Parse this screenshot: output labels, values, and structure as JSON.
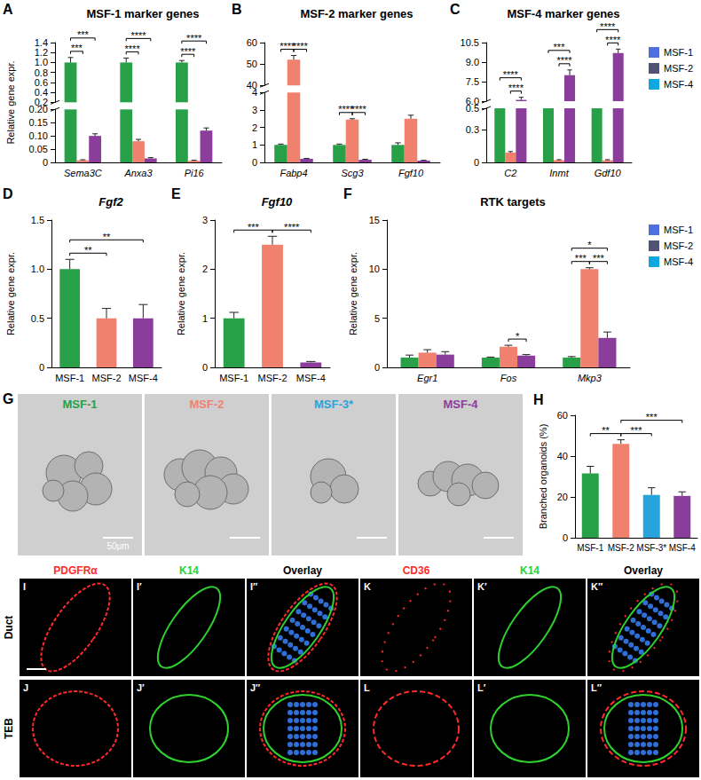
{
  "chart_data": [
    {
      "panel": "A",
      "type": "bar",
      "title": "MSF-1 marker genes",
      "ylabel": "Relative gene expr.",
      "categories": [
        "Sema3C",
        "Anxa3",
        "Pi16"
      ],
      "series": [
        {
          "name": "MSF-1",
          "color": "#27a048",
          "values": [
            1.0,
            1.0,
            1.0
          ],
          "errors": [
            0.1,
            0.09,
            0.04
          ]
        },
        {
          "name": "MSF-2",
          "color": "#f0816f",
          "values": [
            0.008,
            0.08,
            0.006
          ],
          "errors": [
            0.002,
            0.007,
            0.002
          ]
        },
        {
          "name": "MSF-4",
          "color": "#8a3d9b",
          "values": [
            0.1,
            0.015,
            0.12
          ],
          "errors": [
            0.008,
            0.003,
            0.01
          ]
        }
      ],
      "y_segments": [
        {
          "ylim": [
            0,
            0.2
          ],
          "yticks": [
            0,
            0.05,
            {
              "value": 0.1,
              "label": "0.10"
            },
            0.15,
            {
              "value": 0.2,
              "label": "0.20"
            }
          ]
        },
        {
          "ylim": [
            0.2,
            1.4
          ],
          "yticks": [
            0.2,
            0.4,
            0.6,
            0.8,
            {
              "value": 1,
              "label": "1.0"
            },
            1.2,
            1.4
          ]
        }
      ],
      "significance": [
        {
          "category": "Sema3C",
          "between": [
            "MSF-1",
            "MSF-2"
          ],
          "label": "***"
        },
        {
          "category": "Sema3C",
          "between": [
            "MSF-1",
            "MSF-4"
          ],
          "label": "***"
        },
        {
          "category": "Anxa3",
          "between": [
            "MSF-1",
            "MSF-2"
          ],
          "label": "****"
        },
        {
          "category": "Anxa3",
          "between": [
            "MSF-1",
            "MSF-4"
          ],
          "label": "****"
        },
        {
          "category": "Pi16",
          "between": [
            "MSF-1",
            "MSF-2"
          ],
          "label": "****"
        },
        {
          "category": "Pi16",
          "between": [
            "MSF-1",
            "MSF-4"
          ],
          "label": "****"
        }
      ],
      "grid": false
    },
    {
      "panel": "B",
      "type": "bar",
      "title": "MSF-2 marker genes",
      "categories": [
        "Fabp4",
        "Scg3",
        "Fgf10"
      ],
      "series": [
        {
          "name": "MSF-1",
          "color": "#27a048",
          "values": [
            1,
            1,
            1
          ],
          "errors": [
            0.05,
            0.05,
            0.12
          ]
        },
        {
          "name": "MSF-2",
          "color": "#f0816f",
          "values": [
            52,
            2.45,
            2.5
          ],
          "errors": [
            2,
            0.05,
            0.2
          ]
        },
        {
          "name": "MSF-4",
          "color": "#8a3d9b",
          "values": [
            0.2,
            0.15,
            0.1
          ],
          "errors": [
            0.03,
            0.03,
            0.02
          ]
        }
      ],
      "y_segments": [
        {
          "ylim": [
            0,
            4
          ],
          "yticks": [
            0,
            1,
            2,
            3,
            4
          ]
        },
        {
          "ylim": [
            40,
            60
          ],
          "yticks": [
            40,
            50,
            60
          ]
        }
      ],
      "significance": [
        {
          "category": "Fabp4",
          "between": [
            "MSF-1",
            "MSF-2"
          ],
          "label": "****"
        },
        {
          "category": "Fabp4",
          "between": [
            "MSF-2",
            "MSF-4"
          ],
          "label": "****"
        },
        {
          "category": "Scg3",
          "between": [
            "MSF-1",
            "MSF-2"
          ],
          "label": "****"
        },
        {
          "category": "Scg3",
          "between": [
            "MSF-2",
            "MSF-4"
          ],
          "label": "****"
        }
      ],
      "grid": false
    },
    {
      "panel": "C",
      "type": "bar",
      "title": "MSF-4 marker genes",
      "categories": [
        "C2",
        "Inmt",
        "Gdf10"
      ],
      "legend": "right",
      "series": [
        {
          "name": "MSF-1",
          "color": "#27a048",
          "values": [
            0.5,
            0.5,
            0.5
          ],
          "errors": [
            0.01,
            0.01,
            0.01
          ]
        },
        {
          "name": "MSF-2",
          "color": "#f0816f",
          "values": [
            0.09,
            0.02,
            0.02
          ],
          "errors": [
            0.01,
            0.005,
            0.005
          ]
        },
        {
          "name": "MSF-4",
          "color": "#8a3d9b",
          "values": [
            6.1,
            8.0,
            9.7
          ],
          "errors": [
            0.2,
            0.4,
            0.3
          ]
        }
      ],
      "y_segments": [
        {
          "ylim": [
            0,
            0.5
          ],
          "yticks": [
            0,
            0.3,
            0.5
          ]
        },
        {
          "ylim": [
            6,
            10.5
          ],
          "yticks": [
            {
              "value": 6,
              "label": "6.0"
            },
            7.5,
            {
              "value": 9,
              "label": "9.0"
            },
            10.5
          ]
        }
      ],
      "significance": [
        {
          "category": "C2",
          "between": [
            "MSF-1",
            "MSF-4"
          ],
          "label": "****"
        },
        {
          "category": "C2",
          "between": [
            "MSF-2",
            "MSF-4"
          ],
          "label": "****"
        },
        {
          "category": "Inmt",
          "between": [
            "MSF-1",
            "MSF-4"
          ],
          "label": "***"
        },
        {
          "category": "Inmt",
          "between": [
            "MSF-2",
            "MSF-4"
          ],
          "label": "****"
        },
        {
          "category": "Gdf10",
          "between": [
            "MSF-1",
            "MSF-4"
          ],
          "label": "****"
        },
        {
          "category": "Gdf10",
          "between": [
            "MSF-2",
            "MSF-4"
          ],
          "label": "****"
        }
      ],
      "grid": false
    },
    {
      "panel": "D",
      "type": "bar",
      "title": "Fgf2",
      "ylabel": "Relative gene expr.",
      "categories": [
        "MSF-1",
        "MSF-2",
        "MSF-4"
      ],
      "colors": [
        "#27a048",
        "#f0816f",
        "#8a3d9b"
      ],
      "values": [
        1.0,
        0.5,
        0.5
      ],
      "errors": [
        0.1,
        0.1,
        0.14
      ],
      "ylim": [
        0,
        1.5
      ],
      "yticks": [
        0,
        0.5,
        {
          "value": 1,
          "label": "1.0"
        },
        1.5
      ],
      "significance": [
        {
          "between": [
            "MSF-1",
            "MSF-2"
          ],
          "label": "**"
        },
        {
          "between": [
            "MSF-1",
            "MSF-4"
          ],
          "label": "**"
        }
      ],
      "grid": false
    },
    {
      "panel": "E",
      "type": "bar",
      "title": "Fgf10",
      "ylabel": "Relative gene expr.",
      "categories": [
        "MSF-1",
        "MSF-2",
        "MSF-4"
      ],
      "colors": [
        "#27a048",
        "#f0816f",
        "#8a3d9b"
      ],
      "values": [
        1.0,
        2.5,
        0.1
      ],
      "errors": [
        0.12,
        0.17,
        0.02
      ],
      "ylim": [
        0,
        3
      ],
      "yticks": [
        0,
        1,
        2,
        3
      ],
      "significance": [
        {
          "between": [
            "MSF-1",
            "MSF-2"
          ],
          "label": "***"
        },
        {
          "between": [
            "MSF-2",
            "MSF-4"
          ],
          "label": "****"
        }
      ],
      "grid": false
    },
    {
      "panel": "F",
      "type": "bar",
      "title": "RTK targets",
      "ylabel": "Relative gene expr.",
      "categories": [
        "Egr1",
        "Fos",
        "Mkp3"
      ],
      "legend": "right",
      "series": [
        {
          "name": "MSF-1",
          "color": "#27a048",
          "values": [
            1,
            1,
            1
          ],
          "errors": [
            0.25,
            0.05,
            0.1
          ]
        },
        {
          "name": "MSF-2",
          "color": "#f0816f",
          "values": [
            1.5,
            2.1,
            10.0
          ],
          "errors": [
            0.3,
            0.15,
            0.15
          ]
        },
        {
          "name": "MSF-4",
          "color": "#8a3d9b",
          "values": [
            1.3,
            1.2,
            3.0
          ],
          "errors": [
            0.3,
            0.1,
            0.6
          ]
        }
      ],
      "ylim": [
        0,
        15
      ],
      "yticks": [
        0,
        5,
        10,
        15
      ],
      "significance": [
        {
          "category": "Fos",
          "between": [
            "MSF-2",
            "MSF-4"
          ],
          "label": "*"
        },
        {
          "category": "Mkp3",
          "between": [
            "MSF-1",
            "MSF-2"
          ],
          "label": "***"
        },
        {
          "category": "Mkp3",
          "between": [
            "MSF-2",
            "MSF-4"
          ],
          "label": "***"
        },
        {
          "category": "Mkp3",
          "between": [
            "MSF-1",
            "MSF-4"
          ],
          "label": "*"
        }
      ],
      "grid": false
    },
    {
      "panel": "H",
      "type": "bar",
      "ylabel": "Branched organoids (%)",
      "categories": [
        "MSF-1",
        "MSF-2",
        "MSF-3*",
        "MSF-4"
      ],
      "colors": [
        "#27a048",
        "#f0816f",
        "#27a4dc",
        "#8a3d9b"
      ],
      "values": [
        31.5,
        46,
        21,
        20.5
      ],
      "errors": [
        3.5,
        2,
        3.5,
        2
      ],
      "ylim": [
        0,
        60
      ],
      "yticks": [
        0,
        20,
        40,
        60
      ],
      "significance": [
        {
          "between": [
            "MSF-1",
            "MSF-2"
          ],
          "label": "**"
        },
        {
          "between": [
            "MSF-2",
            "MSF-3*"
          ],
          "label": "***"
        },
        {
          "between": [
            "MSF-2",
            "MSF-4"
          ],
          "label": "***"
        }
      ],
      "grid": false
    }
  ],
  "image_panels": [
    {
      "panel": "G",
      "images": [
        {
          "label": "MSF-1",
          "color": "#27a048"
        },
        {
          "label": "MSF-2",
          "color": "#f0816f"
        },
        {
          "label": "MSF-3*",
          "color": "#27a4dc"
        },
        {
          "label": "MSF-4",
          "color": "#8a3d9b"
        }
      ],
      "scale_bar": "50μm"
    },
    {
      "rows": [
        "Duct",
        "TEB"
      ],
      "groups": [
        {
          "columns": [
            {
              "label": "PDGFRα",
              "color": "#ff2a2a"
            },
            {
              "label": "K14",
              "color": "#2ed12e"
            },
            {
              "label": "Overlay",
              "color": "#000000"
            }
          ],
          "panels": [
            [
              "I",
              "I′",
              "I″"
            ],
            [
              "J",
              "J′",
              "J″"
            ]
          ]
        },
        {
          "columns": [
            {
              "label": "CD36",
              "color": "#ff2a2a"
            },
            {
              "label": "K14",
              "color": "#2ed12e"
            },
            {
              "label": "Overlay",
              "color": "#000000"
            }
          ],
          "panels": [
            [
              "K",
              "K′",
              "K″"
            ],
            [
              "L",
              "L′",
              "L″"
            ]
          ]
        }
      ]
    }
  ]
}
